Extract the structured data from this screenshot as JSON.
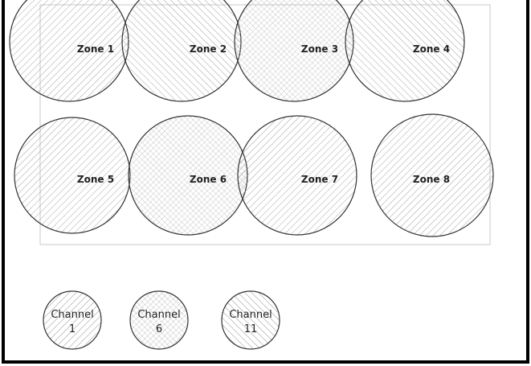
{
  "zones": [
    {
      "id": "zone-1",
      "label": "Zone 1",
      "channel": "1"
    },
    {
      "id": "zone-2",
      "label": "Zone 2",
      "channel": "11"
    },
    {
      "id": "zone-3",
      "label": "Zone 3",
      "channel": "6"
    },
    {
      "id": "zone-4",
      "label": "Zone 4",
      "channel": "11"
    },
    {
      "id": "zone-5",
      "label": "Zone 5",
      "channel": "1"
    },
    {
      "id": "zone-6",
      "label": "Zone 6",
      "channel": "6"
    },
    {
      "id": "zone-7",
      "label": "Zone 7",
      "channel": "1"
    },
    {
      "id": "zone-8",
      "label": "Zone 8",
      "channel": "1"
    }
  ],
  "legend": [
    {
      "id": "channel-1",
      "line1": "Channel",
      "line2": "1",
      "channel": "1"
    },
    {
      "id": "channel-6",
      "line1": "Channel",
      "line2": "6",
      "channel": "6"
    },
    {
      "id": "channel-11",
      "line1": "Channel",
      "line2": "11",
      "channel": "11"
    }
  ],
  "colors": {
    "outline": "#333333",
    "hatch": "#9a9a9a",
    "border": "#000000",
    "background": "#ffffff"
  }
}
